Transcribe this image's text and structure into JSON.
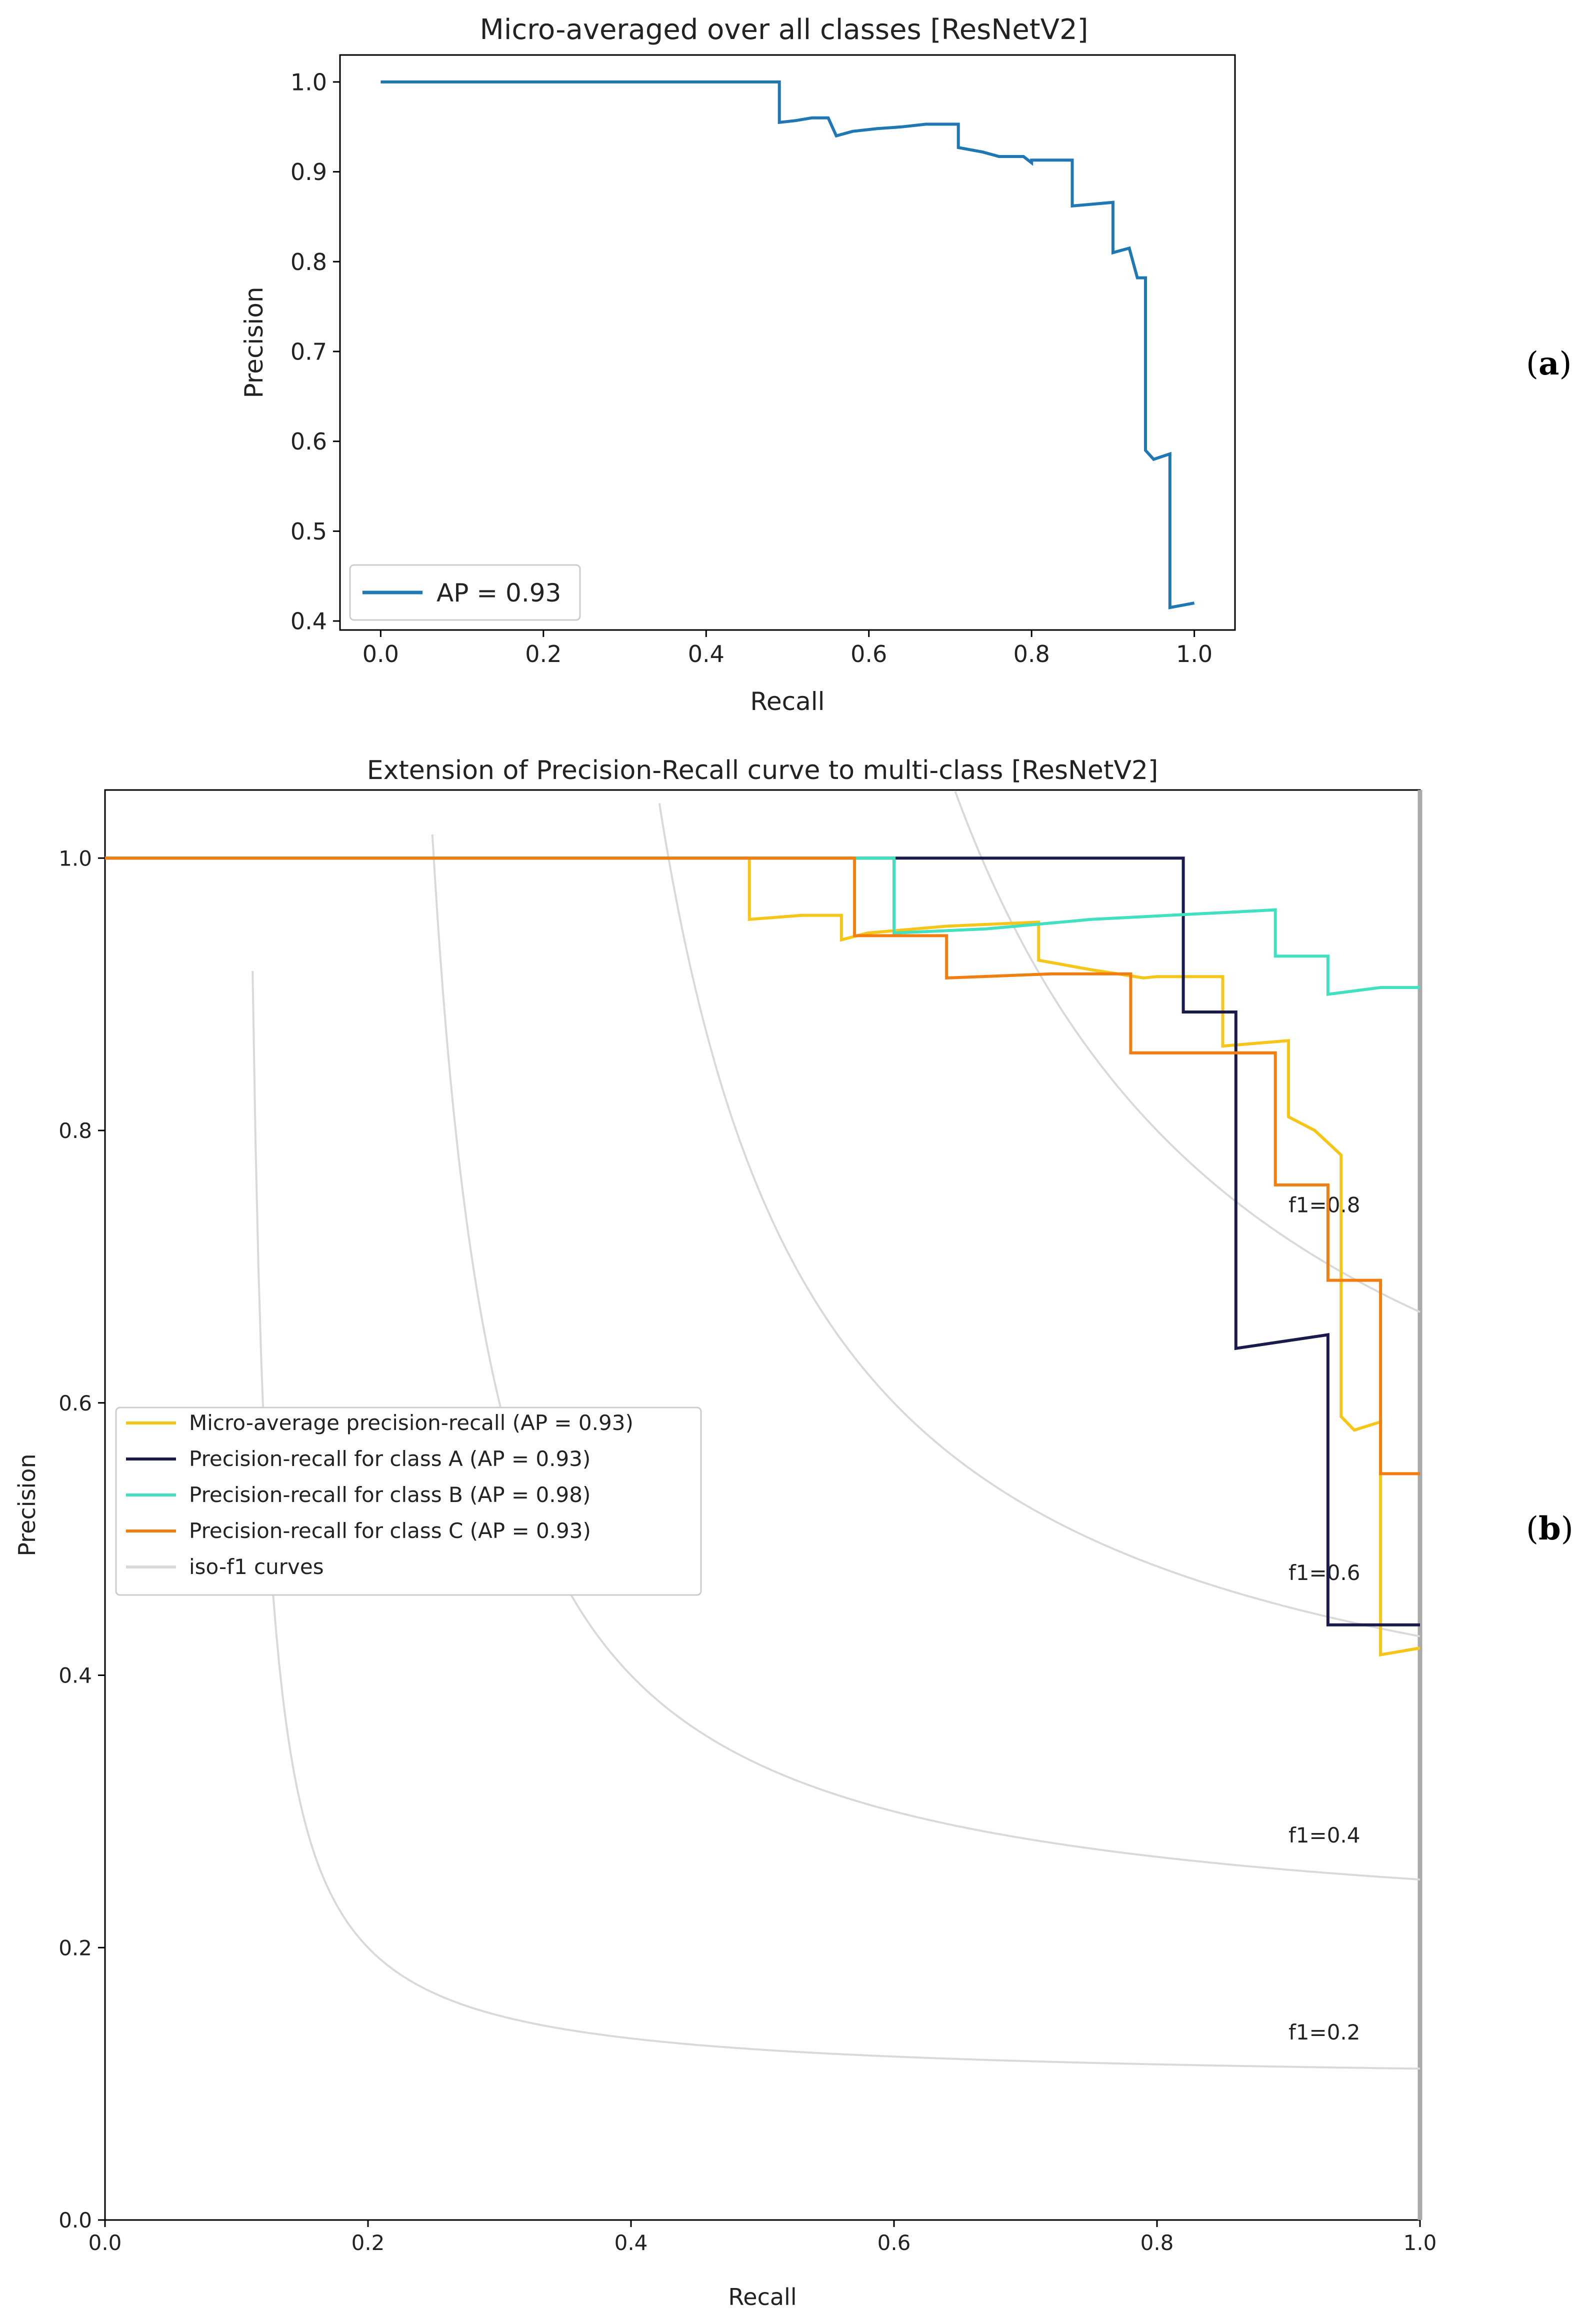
{
  "panels": {
    "a_open": "(",
    "a_letter": "a",
    "a_close": ")",
    "b_open": "(",
    "b_letter": "b",
    "b_close": ")"
  },
  "chart_data": [
    {
      "type": "line",
      "title": "Micro-averaged over all classes [ResNetV2]",
      "xlabel": "Recall",
      "ylabel": "Precision",
      "xlim": [
        -0.05,
        1.05
      ],
      "ylim": [
        0.39,
        1.03
      ],
      "xticks": [
        0.0,
        0.2,
        0.4,
        0.6,
        0.8,
        1.0
      ],
      "xtick_labels": [
        "0.0",
        "0.2",
        "0.4",
        "0.6",
        "0.8",
        "1.0"
      ],
      "yticks": [
        0.4,
        0.5,
        0.6,
        0.7,
        0.8,
        0.9,
        1.0
      ],
      "ytick_labels": [
        "0.4",
        "0.5",
        "0.6",
        "0.7",
        "0.8",
        "0.9",
        "1.0"
      ],
      "grid": false,
      "legend_position": "lower-left",
      "series": [
        {
          "name": "AP = 0.93",
          "color": "#1f77b4",
          "step": true,
          "x": [
            0.0,
            0.49,
            0.49,
            0.51,
            0.53,
            0.55,
            0.56,
            0.56,
            0.58,
            0.61,
            0.64,
            0.67,
            0.71,
            0.71,
            0.74,
            0.76,
            0.79,
            0.8,
            0.8,
            0.85,
            0.85,
            0.9,
            0.9,
            0.92,
            0.93,
            0.94,
            0.94,
            0.95,
            0.97,
            0.97,
            1.0
          ],
          "y": [
            1.0,
            1.0,
            0.955,
            0.957,
            0.96,
            0.96,
            0.94,
            0.94,
            0.945,
            0.948,
            0.95,
            0.953,
            0.953,
            0.927,
            0.922,
            0.917,
            0.917,
            0.91,
            0.913,
            0.913,
            0.862,
            0.866,
            0.81,
            0.815,
            0.782,
            0.782,
            0.59,
            0.58,
            0.586,
            0.415,
            0.42
          ]
        }
      ]
    },
    {
      "type": "line",
      "title": "Extension of Precision-Recall curve to multi-class [ResNetV2]",
      "xlabel": "Recall",
      "ylabel": "Precision",
      "xlim": [
        0.0,
        1.0
      ],
      "ylim": [
        0.0,
        1.05
      ],
      "xticks": [
        0.0,
        0.2,
        0.4,
        0.6,
        0.8,
        1.0
      ],
      "xtick_labels": [
        "0.0",
        "0.2",
        "0.4",
        "0.6",
        "0.8",
        "1.0"
      ],
      "yticks": [
        0.0,
        0.2,
        0.4,
        0.6,
        0.8,
        1.0
      ],
      "ytick_labels": [
        "0.0",
        "0.2",
        "0.4",
        "0.6",
        "0.8",
        "1.0"
      ],
      "grid": false,
      "legend_position": "center-left",
      "iso_f1": {
        "values": [
          0.2,
          0.4,
          0.6,
          0.8
        ],
        "labels": [
          "f1=0.2",
          "f1=0.4",
          "f1=0.6",
          "f1=0.8"
        ],
        "color": "#d9d9d9"
      },
      "legend_entries": [
        {
          "text": "Micro-average precision-recall (AP = 0.93)",
          "color": "#f5c518"
        },
        {
          "text": "Precision-recall for class A (AP = 0.93)",
          "color": "#1a1a4d"
        },
        {
          "text": "Precision-recall for class B (AP = 0.98)",
          "color": "#40e0c0"
        },
        {
          "text": "Precision-recall for class C (AP = 0.93)",
          "color": "#f07f10"
        },
        {
          "text": "iso-f1 curves",
          "color": "#d9d9d9"
        }
      ],
      "series": [
        {
          "name": "Micro-average precision-recall (AP = 0.93)",
          "color": "#f5c518",
          "step": true,
          "x": [
            0.0,
            0.49,
            0.49,
            0.53,
            0.56,
            0.56,
            0.58,
            0.64,
            0.71,
            0.71,
            0.75,
            0.79,
            0.8,
            0.85,
            0.85,
            0.9,
            0.9,
            0.92,
            0.94,
            0.94,
            0.95,
            0.97,
            0.97,
            1.0
          ],
          "y": [
            1.0,
            1.0,
            0.955,
            0.958,
            0.958,
            0.94,
            0.945,
            0.95,
            0.953,
            0.925,
            0.918,
            0.912,
            0.913,
            0.913,
            0.862,
            0.866,
            0.81,
            0.8,
            0.782,
            0.59,
            0.58,
            0.586,
            0.415,
            0.42
          ]
        },
        {
          "name": "Precision-recall for class A (AP = 0.93)",
          "color": "#1a1a4d",
          "step": true,
          "x": [
            0.0,
            0.82,
            0.82,
            0.86,
            0.86,
            0.93,
            0.93,
            1.0
          ],
          "y": [
            1.0,
            1.0,
            0.887,
            0.887,
            0.64,
            0.65,
            0.437,
            0.437
          ]
        },
        {
          "name": "Precision-recall for class B (AP = 0.98)",
          "color": "#40e0c0",
          "step": true,
          "x": [
            0.0,
            0.6,
            0.6,
            0.67,
            0.75,
            0.89,
            0.89,
            0.93,
            0.93,
            0.97,
            1.0
          ],
          "y": [
            1.0,
            1.0,
            0.945,
            0.948,
            0.955,
            0.962,
            0.928,
            0.928,
            0.9,
            0.905,
            0.905
          ]
        },
        {
          "name": "Precision-recall for class C (AP = 0.93)",
          "color": "#f07f10",
          "step": true,
          "x": [
            0.0,
            0.57,
            0.57,
            0.64,
            0.64,
            0.72,
            0.78,
            0.78,
            0.89,
            0.89,
            0.93,
            0.93,
            0.97,
            0.97,
            1.0
          ],
          "y": [
            1.0,
            1.0,
            0.943,
            0.943,
            0.912,
            0.915,
            0.915,
            0.857,
            0.857,
            0.76,
            0.76,
            0.69,
            0.69,
            0.548,
            0.548
          ]
        }
      ]
    }
  ]
}
